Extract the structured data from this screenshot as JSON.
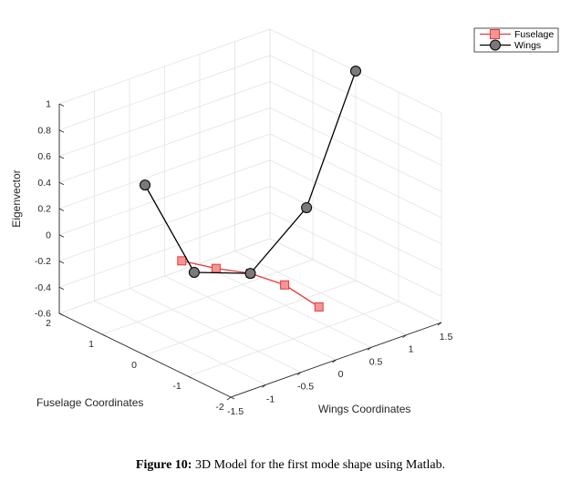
{
  "chart_data": {
    "type": "line3d",
    "zlabel": "Eigenvector",
    "ylabel": "Fuselage Coordinates",
    "xlabel": "Wings Coordinates",
    "z_ticks": [
      "-0.6",
      "-0.4",
      "-0.2",
      "0",
      "0.2",
      "0.4",
      "0.6",
      "0.8",
      "1"
    ],
    "y_ticks": [
      "2",
      "1",
      "0",
      "-1",
      "-2"
    ],
    "x_ticks": [
      "-1.5",
      "-1",
      "-0.5",
      "0",
      "0.5",
      "1",
      "1.5"
    ],
    "xlim": [
      -1.5,
      1.5
    ],
    "ylim": [
      -2,
      2
    ],
    "zlim": [
      -0.6,
      1
    ],
    "grid": true,
    "legend_position": "top-right",
    "series": [
      {
        "name": "Fuselage",
        "color": "#e8383b",
        "fill": "#f29596",
        "marker": "square",
        "points": [
          {
            "x": 0,
            "y": 1.6,
            "z": -0.42
          },
          {
            "x": 0,
            "y": 0.8,
            "z": -0.35
          },
          {
            "x": 0,
            "y": 0,
            "z": -0.26
          },
          {
            "x": 0,
            "y": -0.8,
            "z": -0.22
          },
          {
            "x": 0,
            "y": -1.6,
            "z": -0.26
          }
        ]
      },
      {
        "name": "Wings",
        "color": "#000000",
        "fill": "#7a7a7a",
        "marker": "circle",
        "points": [
          {
            "x": -1.5,
            "y": 0,
            "z": 0.7
          },
          {
            "x": -0.8,
            "y": 0,
            "z": -0.1
          },
          {
            "x": 0,
            "y": 0,
            "z": -0.26
          },
          {
            "x": 0.8,
            "y": 0,
            "z": 0.09
          },
          {
            "x": 1.5,
            "y": 0,
            "z": 1.0
          }
        ]
      }
    ]
  },
  "caption": {
    "label": "Figure 10:",
    "text": " 3D Model for the first mode shape using Matlab."
  }
}
